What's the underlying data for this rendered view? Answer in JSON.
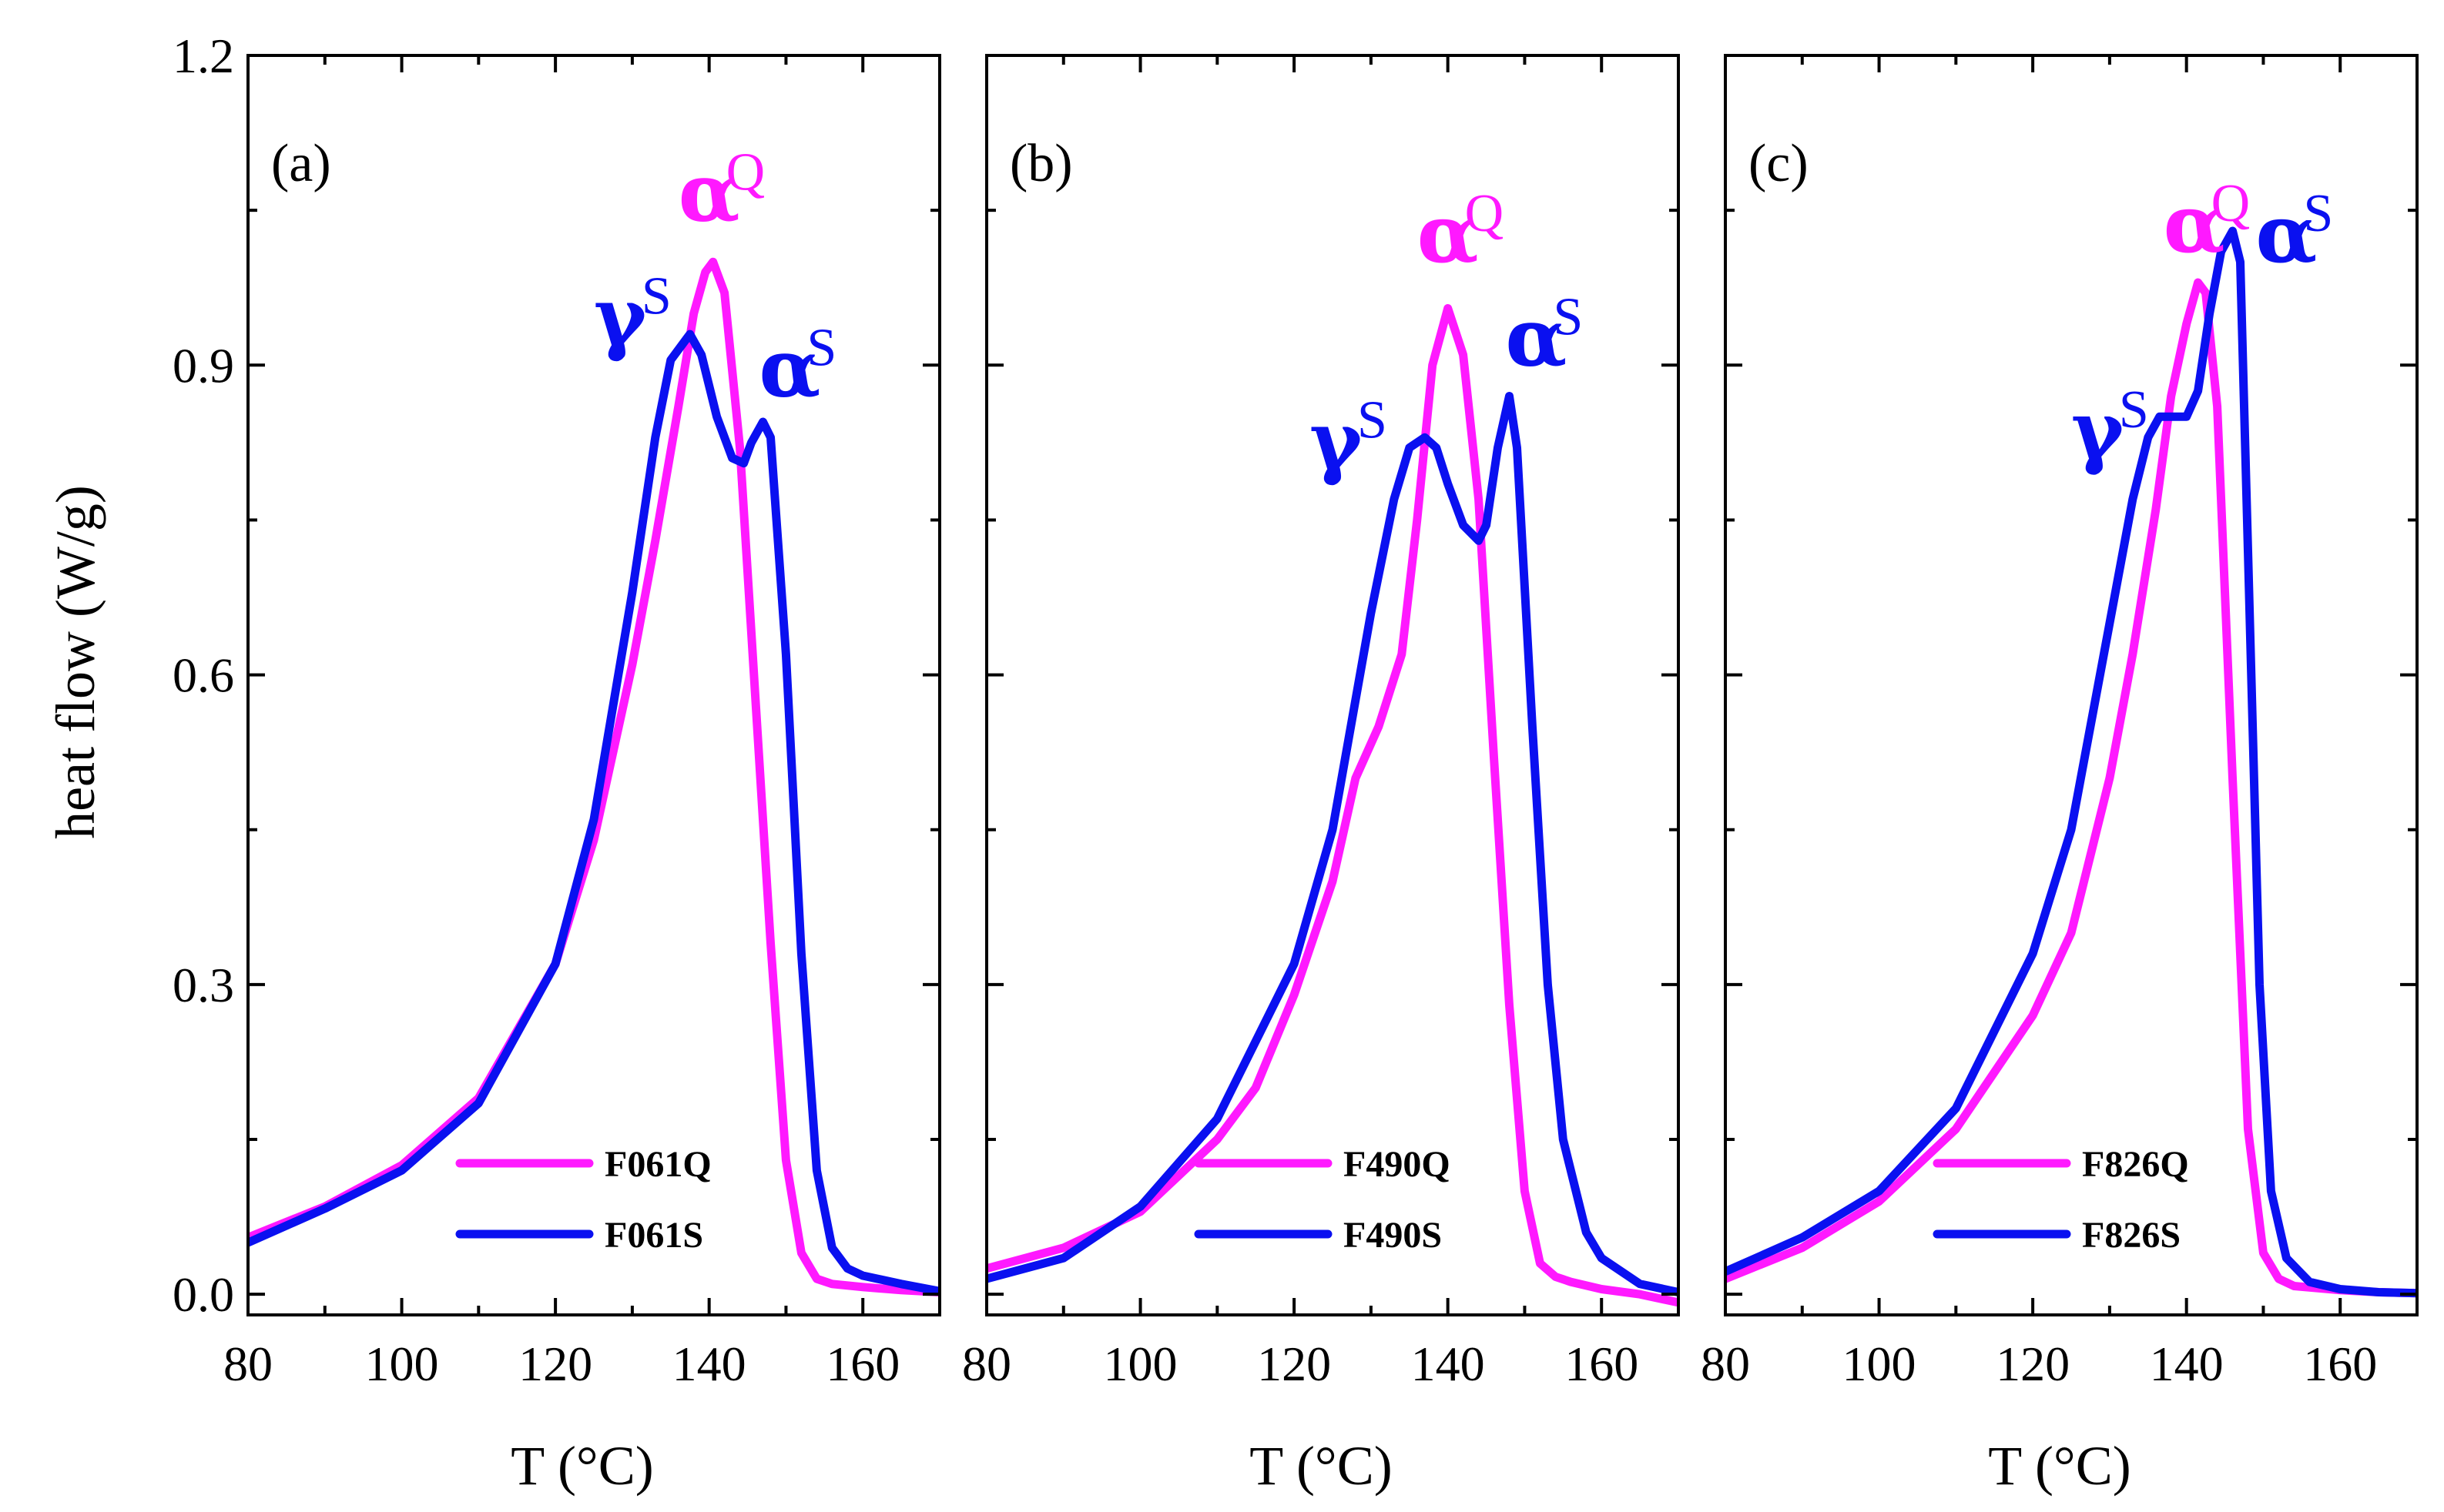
{
  "figure": {
    "ylabel": "heat flow (W/g)",
    "y_ticks": [
      "0.0",
      "0.3",
      "0.6",
      "0.9",
      "1.2"
    ],
    "y_tick_values": [
      0.0,
      0.3,
      0.6,
      0.9,
      1.2
    ],
    "colors": {
      "Q": "#ff19ff",
      "S": "#0a10f0",
      "axis": "#000000"
    }
  },
  "chart_data": [
    {
      "type": "line",
      "panel": "(a)",
      "xlabel": "T (°C)",
      "ylabel": "heat flow (W/g)",
      "xlim": [
        80,
        170
      ],
      "ylim": [
        -0.02,
        1.2
      ],
      "x_ticks": [
        "80",
        "100",
        "120",
        "140",
        "160"
      ],
      "x_tick_values": [
        80,
        100,
        120,
        140,
        160
      ],
      "legend": {
        "position": "bottom-right",
        "entries": [
          "F061Q",
          "F061S"
        ]
      },
      "annotations": [
        {
          "greek": "α",
          "sup": "Q",
          "series": "Q",
          "x": 140,
          "y": 1.04
        },
        {
          "greek": "γ",
          "sup": "S",
          "series": "S",
          "x": 129,
          "y": 0.92
        },
        {
          "greek": "α",
          "sup": "S",
          "series": "S",
          "x": 150.5,
          "y": 0.87
        }
      ],
      "series": [
        {
          "name": "F061Q",
          "key": "Q",
          "x": [
            80,
            90,
            100,
            110,
            120,
            125,
            130,
            133,
            136,
            138,
            139.5,
            140.5,
            142,
            144,
            146,
            148,
            150,
            152,
            154,
            156,
            160,
            165,
            170
          ],
          "y": [
            0.055,
            0.085,
            0.125,
            0.19,
            0.32,
            0.44,
            0.61,
            0.73,
            0.86,
            0.95,
            0.99,
            1.0,
            0.97,
            0.82,
            0.58,
            0.34,
            0.13,
            0.04,
            0.015,
            0.01,
            0.007,
            0.004,
            0.002
          ]
        },
        {
          "name": "F061S",
          "key": "S",
          "x": [
            80,
            90,
            100,
            110,
            120,
            125,
            130,
            133,
            135,
            137.5,
            139,
            141,
            143,
            144.5,
            145.5,
            147,
            148,
            150,
            152,
            154,
            156,
            158,
            160,
            165,
            170
          ],
          "y": [
            0.05,
            0.083,
            0.12,
            0.185,
            0.32,
            0.46,
            0.68,
            0.83,
            0.905,
            0.93,
            0.91,
            0.85,
            0.81,
            0.805,
            0.825,
            0.845,
            0.83,
            0.62,
            0.33,
            0.12,
            0.045,
            0.025,
            0.018,
            0.01,
            0.003
          ]
        }
      ]
    },
    {
      "type": "line",
      "panel": "(b)",
      "xlabel": "T (°C)",
      "ylabel": "heat flow (W/g)",
      "xlim": [
        80,
        170
      ],
      "ylim": [
        -0.02,
        1.2
      ],
      "x_ticks": [
        "80",
        "100",
        "120",
        "140",
        "160"
      ],
      "x_tick_values": [
        80,
        100,
        120,
        140,
        160
      ],
      "legend": {
        "position": "bottom-right",
        "entries": [
          "F490Q",
          "F490S"
        ]
      },
      "annotations": [
        {
          "greek": "α",
          "sup": "Q",
          "series": "Q",
          "x": 140,
          "y": 1.0
        },
        {
          "greek": "γ",
          "sup": "S",
          "series": "S",
          "x": 126,
          "y": 0.8
        },
        {
          "greek": "α",
          "sup": "S",
          "series": "S",
          "x": 151.5,
          "y": 0.9
        }
      ],
      "series": [
        {
          "name": "F490Q",
          "key": "Q",
          "x": [
            80,
            90,
            100,
            110,
            115,
            120,
            125,
            128,
            131,
            134,
            136,
            138,
            140,
            142,
            144,
            146,
            148,
            150,
            152,
            154,
            156,
            160,
            165,
            170
          ],
          "y": [
            0.025,
            0.045,
            0.08,
            0.15,
            0.2,
            0.29,
            0.4,
            0.5,
            0.55,
            0.62,
            0.75,
            0.9,
            0.955,
            0.91,
            0.77,
            0.52,
            0.28,
            0.1,
            0.03,
            0.017,
            0.012,
            0.005,
            0.0,
            -0.008
          ]
        },
        {
          "name": "F490S",
          "key": "S",
          "x": [
            80,
            90,
            95,
            100,
            110,
            120,
            125,
            130,
            133,
            135,
            137,
            138.5,
            140,
            142,
            144,
            145,
            146.5,
            148,
            149,
            151,
            153,
            155,
            158,
            160,
            165,
            170
          ],
          "y": [
            0.015,
            0.035,
            0.06,
            0.085,
            0.17,
            0.32,
            0.45,
            0.66,
            0.77,
            0.82,
            0.83,
            0.82,
            0.785,
            0.745,
            0.73,
            0.745,
            0.82,
            0.87,
            0.82,
            0.55,
            0.3,
            0.15,
            0.06,
            0.035,
            0.01,
            0.002
          ]
        }
      ]
    },
    {
      "type": "line",
      "panel": "(c)",
      "xlabel": "T (°C)",
      "ylabel": "heat flow (W/g)",
      "xlim": [
        80,
        170
      ],
      "ylim": [
        -0.02,
        1.2
      ],
      "x_ticks": [
        "80",
        "100",
        "120",
        "140",
        "160"
      ],
      "x_tick_values": [
        80,
        100,
        120,
        140,
        160
      ],
      "legend": {
        "position": "bottom-right",
        "entries": [
          "F826Q",
          "F826S"
        ]
      },
      "annotations": [
        {
          "greek": "α",
          "sup": "Q",
          "series": "Q",
          "x": 141,
          "y": 1.01
        },
        {
          "greek": "γ",
          "sup": "S",
          "series": "S",
          "x": 129,
          "y": 0.81
        },
        {
          "greek": "α",
          "sup": "S",
          "series": "S",
          "x": 153,
          "y": 1.0
        }
      ],
      "series": [
        {
          "name": "F826Q",
          "key": "Q",
          "x": [
            80,
            90,
            100,
            110,
            120,
            125,
            130,
            133,
            136,
            138,
            140,
            141.5,
            142.5,
            144,
            146,
            148,
            150,
            152,
            154,
            160,
            165,
            170
          ],
          "y": [
            0.015,
            0.045,
            0.09,
            0.16,
            0.27,
            0.35,
            0.5,
            0.62,
            0.76,
            0.87,
            0.94,
            0.98,
            0.97,
            0.86,
            0.5,
            0.16,
            0.04,
            0.015,
            0.008,
            0.004,
            0.002,
            0.001
          ]
        },
        {
          "name": "F826S",
          "key": "S",
          "x": [
            80,
            90,
            100,
            110,
            120,
            125,
            130,
            133,
            135,
            136.5,
            138,
            140,
            141.5,
            143,
            144.5,
            146,
            147,
            148,
            149.5,
            151,
            153,
            156,
            160,
            165,
            170
          ],
          "y": [
            0.022,
            0.055,
            0.1,
            0.18,
            0.33,
            0.45,
            0.65,
            0.77,
            0.83,
            0.85,
            0.85,
            0.85,
            0.875,
            0.95,
            1.01,
            1.03,
            1.0,
            0.72,
            0.3,
            0.1,
            0.035,
            0.012,
            0.005,
            0.002,
            0.001
          ]
        }
      ]
    }
  ]
}
